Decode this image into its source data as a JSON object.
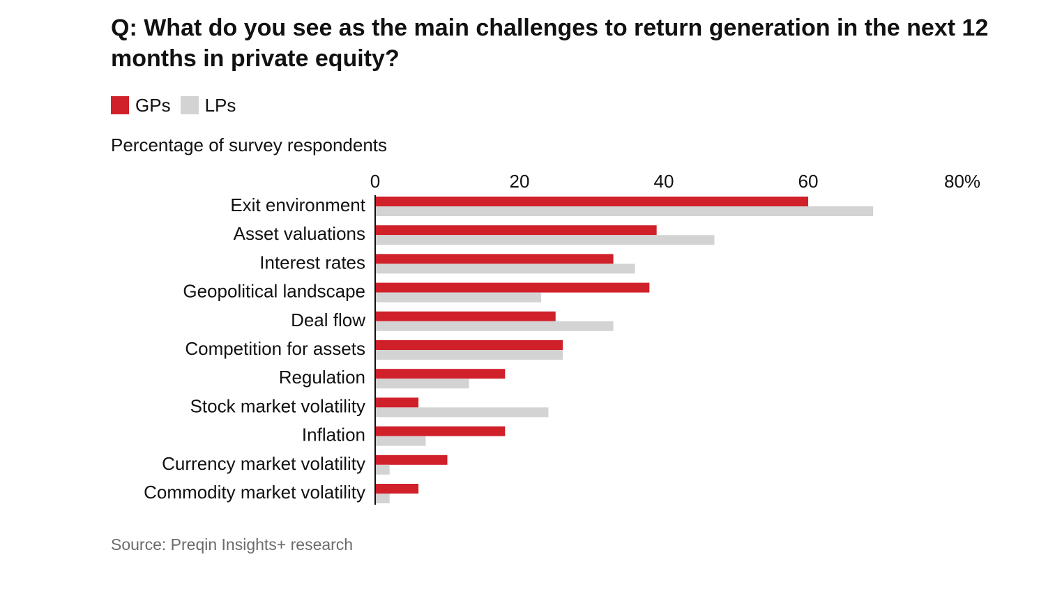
{
  "title": "Q: What do you see as the main challenges to return generation in the next 12 months in private equity?",
  "subtitle": "Percentage of survey respondents",
  "source": "Source: Preqin Insights+ research",
  "legend": [
    {
      "label": "GPs",
      "color": "#d0202a"
    },
    {
      "label": "LPs",
      "color": "#d3d3d3"
    }
  ],
  "chart_data": {
    "type": "bar",
    "orientation": "horizontal",
    "categories": [
      "Exit environment",
      "Asset valuations",
      "Interest rates",
      "Geopolitical landscape",
      "Deal flow",
      "Competition for assets",
      "Regulation",
      "Stock market volatility",
      "Inflation",
      "Currency market volatility",
      "Commodity market volatility"
    ],
    "series": [
      {
        "name": "GPs",
        "color": "#d0202a",
        "values": [
          60,
          39,
          33,
          38,
          25,
          26,
          18,
          6,
          18,
          10,
          6
        ]
      },
      {
        "name": "LPs",
        "color": "#d3d3d3",
        "values": [
          69,
          47,
          36,
          23,
          33,
          26,
          13,
          24,
          7,
          2,
          2
        ]
      }
    ],
    "xlim": [
      0,
      80
    ],
    "xticks": [
      "0",
      "20",
      "40",
      "60",
      "80%"
    ],
    "grid": false,
    "legend_position": "top-left"
  }
}
